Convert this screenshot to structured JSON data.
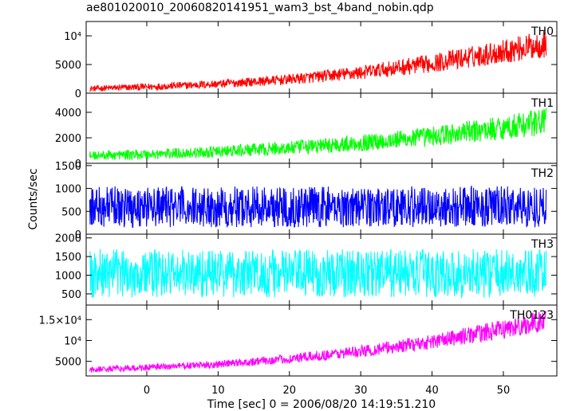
{
  "chart_data": {
    "type": "line",
    "title": "ae801020010_20060820141951_wam3_bst_4band_nobin.qdp",
    "xlabel": "Time [sec] 0 = 2006/08/20 14:19:51.210",
    "ylabel": "Counts/sec",
    "xlim": [
      -8.5,
      57.5
    ],
    "x_ticks": [
      0,
      10,
      20,
      30,
      40,
      50
    ],
    "x_tick_labels": [
      "0",
      "10",
      "20",
      "30",
      "40",
      "50"
    ],
    "data_x_range": [
      -8,
      56
    ],
    "grid": false,
    "panels": [
      {
        "name": "TH0",
        "color": "#ff0000",
        "ylim": [
          0,
          12500
        ],
        "y_ticks": [
          0,
          5000,
          10000
        ],
        "y_tick_labels": [
          "0",
          "5000",
          "10⁴"
        ],
        "trend": {
          "x": [
            -8,
            0,
            10,
            20,
            30,
            40,
            50,
            56
          ],
          "y": [
            800,
            1100,
            1600,
            2400,
            3600,
            5200,
            7300,
            8600
          ]
        },
        "band": {
          "x": [
            -8,
            0,
            10,
            20,
            30,
            40,
            50,
            56
          ],
          "y": [
            500,
            600,
            700,
            900,
            1200,
            1600,
            2100,
            2400
          ]
        }
      },
      {
        "name": "TH1",
        "color": "#00ff00",
        "ylim": [
          0,
          5500
        ],
        "y_ticks": [
          0,
          2000,
          4000
        ],
        "y_tick_labels": [
          "0",
          "2000",
          "4000"
        ],
        "trend": {
          "x": [
            -8,
            0,
            10,
            20,
            30,
            40,
            50,
            56
          ],
          "y": [
            600,
            700,
            900,
            1200,
            1600,
            2100,
            2800,
            3300
          ]
        },
        "band": {
          "x": [
            -8,
            0,
            10,
            20,
            30,
            40,
            50,
            56
          ],
          "y": [
            350,
            400,
            450,
            550,
            650,
            800,
            950,
            1100
          ]
        }
      },
      {
        "name": "TH2",
        "color": "#0000ff",
        "ylim": [
          0,
          1550
        ],
        "y_ticks": [
          0,
          500,
          1000,
          1500
        ],
        "y_tick_labels": [
          "0",
          "500",
          "1000",
          "1500"
        ],
        "trend": {
          "x": [
            -8,
            56
          ],
          "y": [
            600,
            600
          ]
        },
        "band": {
          "x": [
            -8,
            56
          ],
          "y": [
            450,
            450
          ]
        }
      },
      {
        "name": "TH3",
        "color": "#00ffff",
        "ylim": [
          200,
          2100
        ],
        "y_ticks": [
          500,
          1000,
          1500,
          2000
        ],
        "y_tick_labels": [
          "500",
          "1000",
          "1500",
          "2000"
        ],
        "trend": {
          "x": [
            -8,
            56
          ],
          "y": [
            1050,
            1050
          ]
        },
        "band": {
          "x": [
            -8,
            56
          ],
          "y": [
            650,
            650
          ]
        }
      },
      {
        "name": "TH0123",
        "color": "#ff00ff",
        "ylim": [
          1500,
          18500
        ],
        "y_ticks": [
          5000,
          10000,
          15000
        ],
        "y_tick_labels": [
          "5000",
          "10⁴",
          "1.5×10⁴"
        ],
        "trend": {
          "x": [
            -8,
            0,
            10,
            20,
            30,
            40,
            50,
            56
          ],
          "y": [
            3000,
            3500,
            4300,
            5600,
            7400,
            9700,
            12700,
            14800
          ]
        },
        "band": {
          "x": [
            -8,
            0,
            10,
            20,
            30,
            40,
            50,
            56
          ],
          "y": [
            700,
            800,
            900,
            1100,
            1400,
            1800,
            2300,
            2600
          ]
        }
      }
    ]
  }
}
